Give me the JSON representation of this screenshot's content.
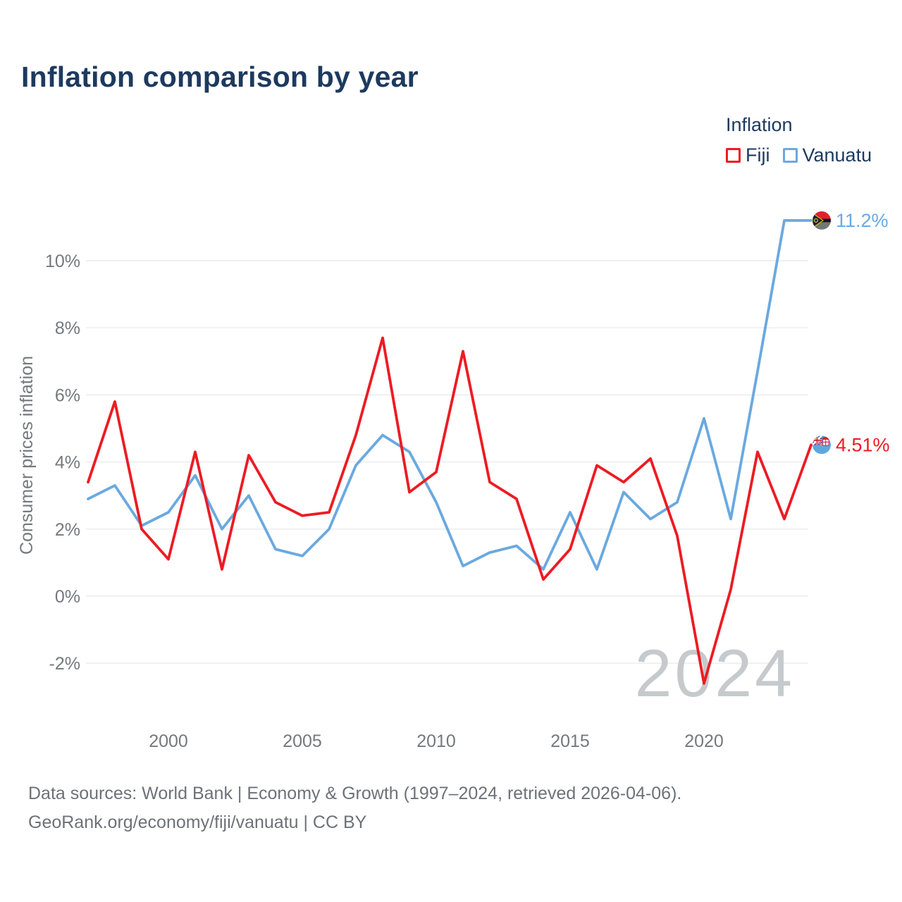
{
  "title": "Inflation comparison by year",
  "legend": {
    "title": "Inflation",
    "items": [
      {
        "label": "Fiji",
        "color": "#ed1b23"
      },
      {
        "label": "Vanuatu",
        "color": "#6aa9e0"
      }
    ]
  },
  "watermark": "2024",
  "footer": {
    "line1": "Data sources: World Bank | Economy & Growth (1997–2024, retrieved 2026-04-06).",
    "line2": "GeoRank.org/economy/fiji/vanuatu | CC BY"
  },
  "chart_data": {
    "type": "line",
    "title": "Inflation comparison by year",
    "xlabel": "",
    "ylabel": "Consumer prices inflation",
    "x": [
      1997,
      1998,
      1999,
      2000,
      2001,
      2002,
      2003,
      2004,
      2005,
      2006,
      2007,
      2008,
      2009,
      2010,
      2011,
      2012,
      2013,
      2014,
      2015,
      2016,
      2017,
      2018,
      2019,
      2020,
      2021,
      2022,
      2023,
      2024
    ],
    "series": [
      {
        "name": "Fiji",
        "color": "#ed1b23",
        "end_label": "4.51%",
        "marker_icon": "fiji-flag-icon",
        "values": [
          3.4,
          5.8,
          2.0,
          1.1,
          4.3,
          0.8,
          4.2,
          2.8,
          2.4,
          2.5,
          4.8,
          7.7,
          3.1,
          3.7,
          7.3,
          3.4,
          2.9,
          0.5,
          1.4,
          3.9,
          3.4,
          4.1,
          1.8,
          -2.6,
          0.2,
          4.3,
          2.3,
          4.51
        ]
      },
      {
        "name": "Vanuatu",
        "color": "#6aa9e0",
        "end_label": "11.2%",
        "marker_icon": "vanuatu-flag-icon",
        "values": [
          2.9,
          3.3,
          2.1,
          2.5,
          3.6,
          2.0,
          3.0,
          1.4,
          1.2,
          2.0,
          3.9,
          4.8,
          4.3,
          2.8,
          0.9,
          1.3,
          1.5,
          0.8,
          2.5,
          0.8,
          3.1,
          2.3,
          2.8,
          5.3,
          2.3,
          6.7,
          11.2,
          11.2
        ]
      }
    ],
    "yticks": [
      "-2%",
      "0%",
      "2%",
      "4%",
      "6%",
      "8%",
      "10%"
    ],
    "ytick_values": [
      -2,
      0,
      2,
      4,
      6,
      8,
      10
    ],
    "xticks": [
      2000,
      2005,
      2010,
      2015,
      2020
    ],
    "ylim": [
      -3.3,
      11.6
    ],
    "xlim": [
      1997,
      2024
    ],
    "grid": "horizontal",
    "legend_position": "top-right"
  }
}
